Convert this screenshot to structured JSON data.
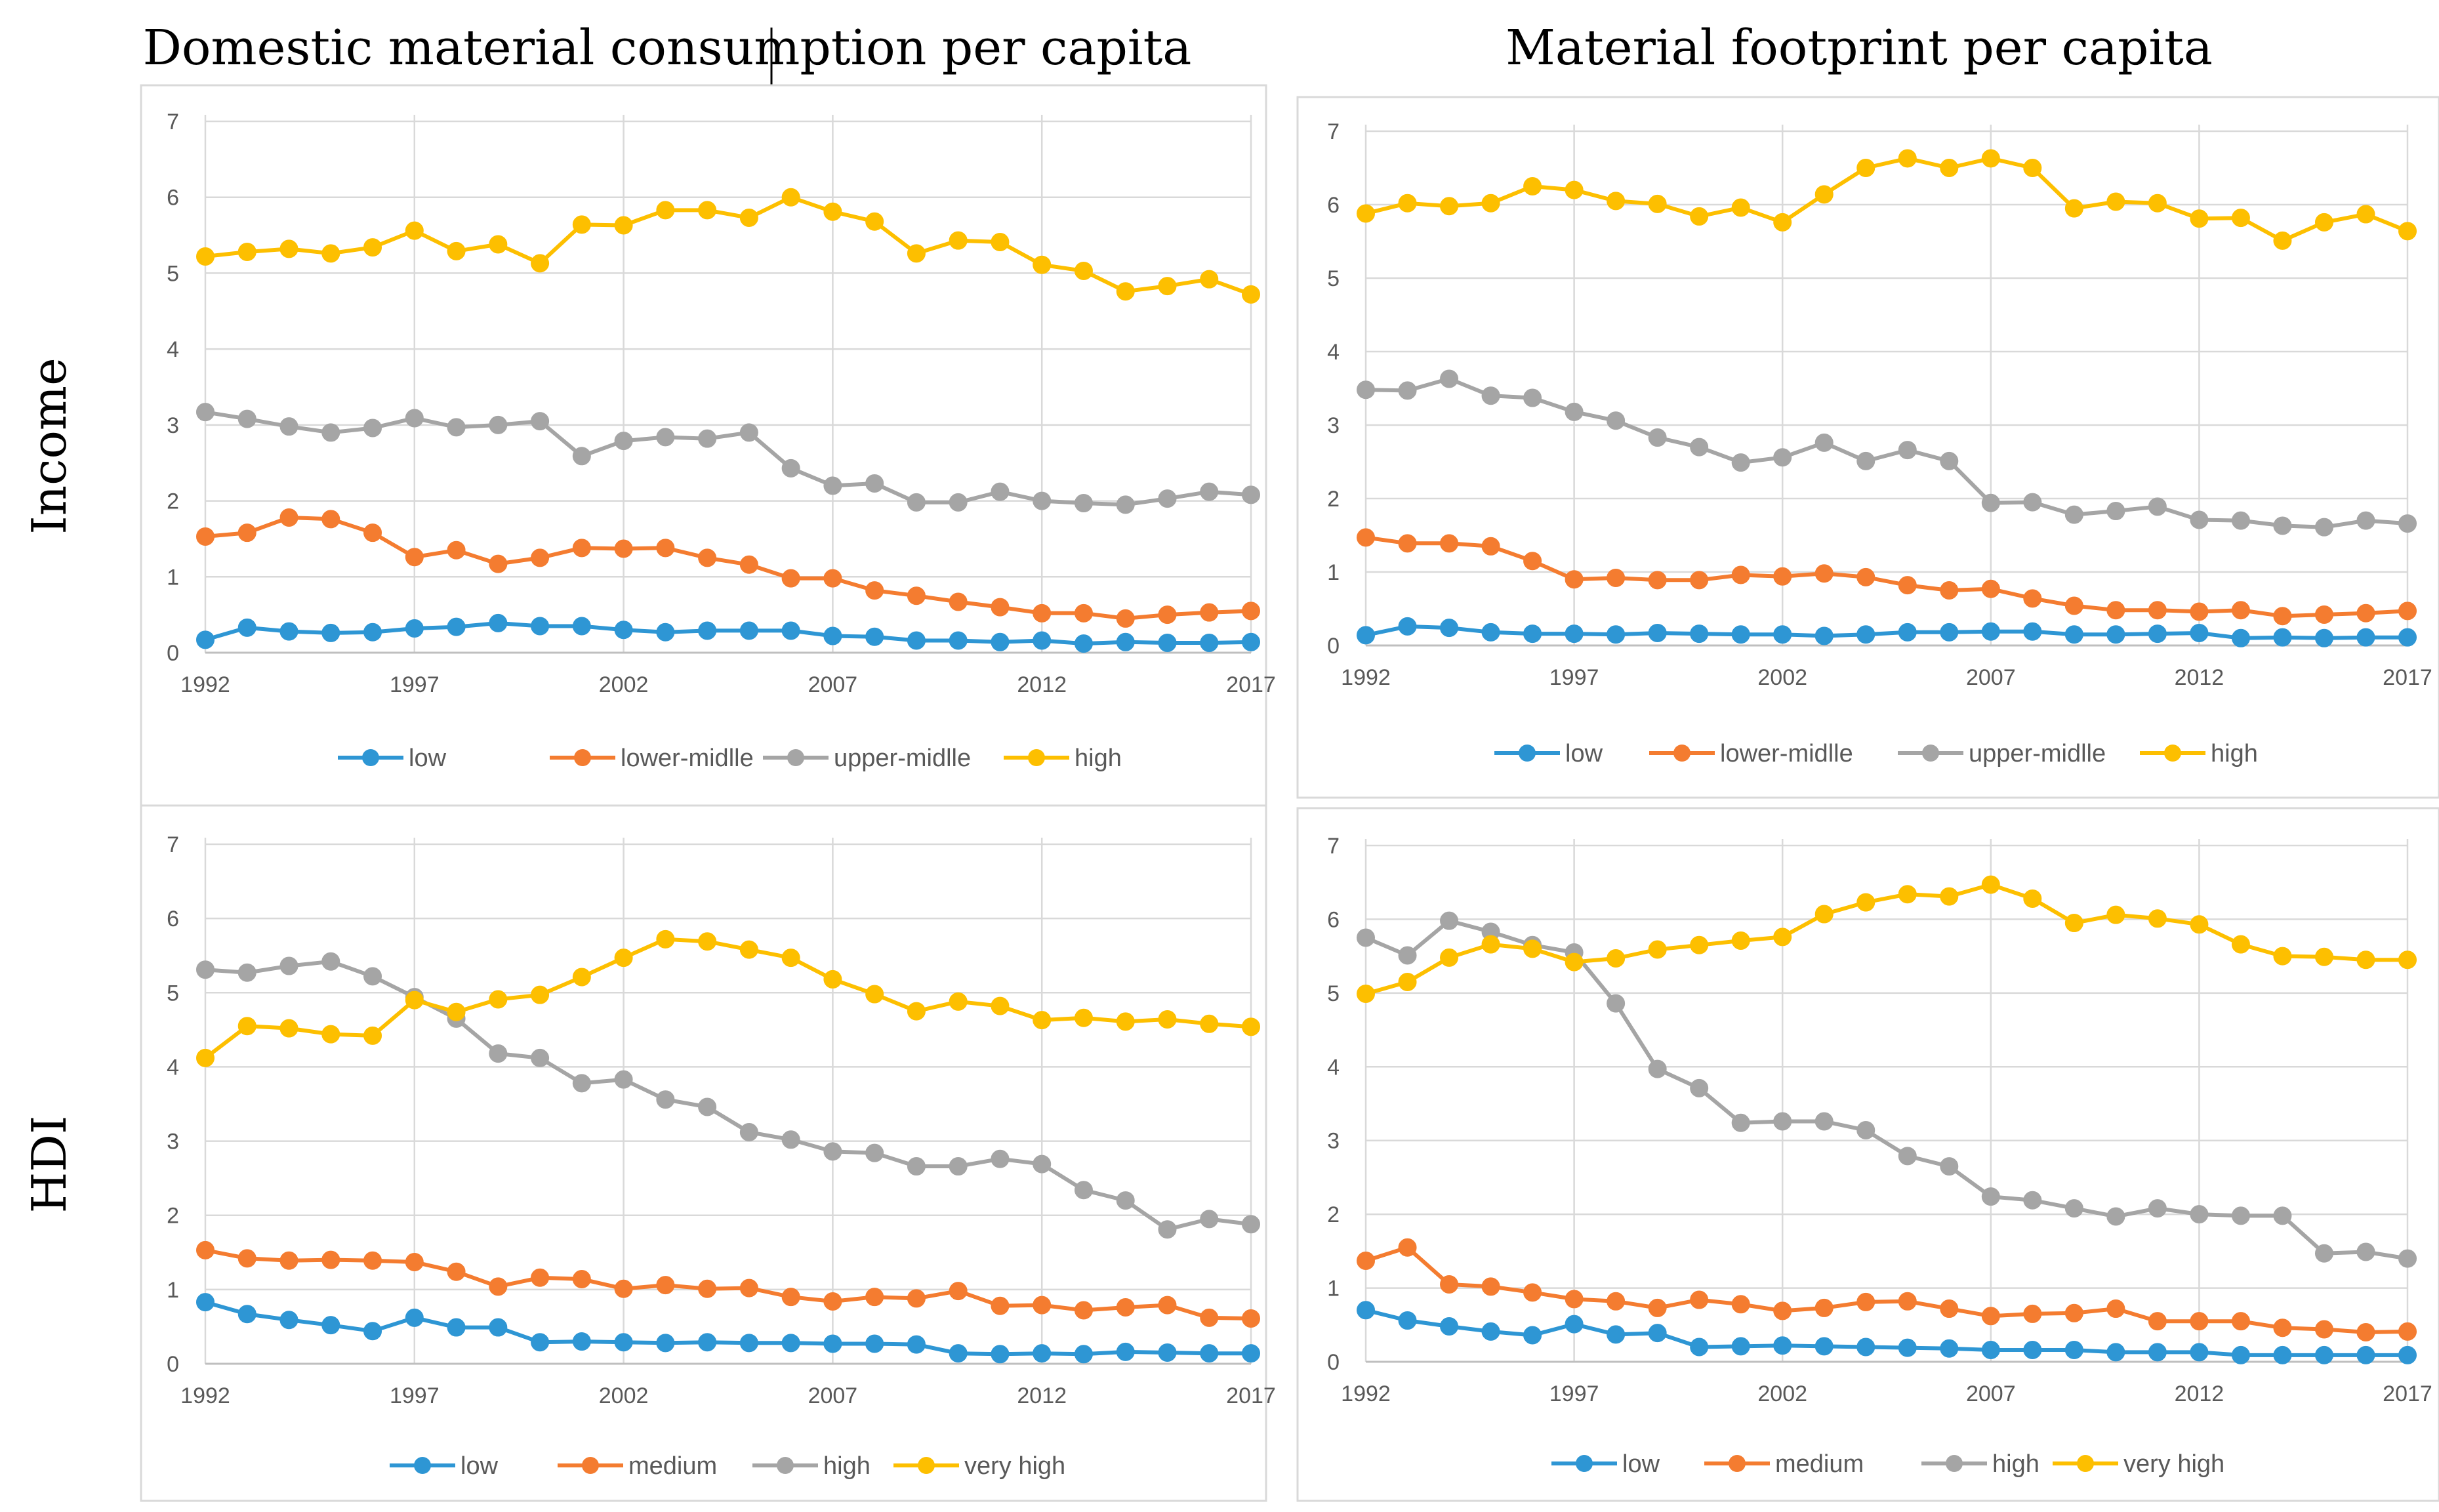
{
  "figure": {
    "col_titles": [
      "Domestic material consumption per capita",
      "Material footprint per capita"
    ],
    "row_titles": [
      "Income",
      "HDI"
    ]
  },
  "colors": {
    "low": "#2e96d4",
    "medium": "#f47c30",
    "high": "#a5a5a5",
    "top": "#fdbf00"
  },
  "chart_data": [
    {
      "type": "line",
      "title": "Domestic material consumption per capita",
      "row": "Income",
      "x": [
        1992,
        1993,
        1994,
        1995,
        1996,
        1997,
        1998,
        1999,
        2000,
        2001,
        2002,
        2003,
        2004,
        2005,
        2006,
        2007,
        2008,
        2009,
        2010,
        2011,
        2012,
        2013,
        2014,
        2015,
        2016,
        2017
      ],
      "xticks": [
        "1992",
        "1997",
        "2002",
        "2007",
        "2012",
        "2017"
      ],
      "yticks": [
        "0",
        "1",
        "2",
        "3",
        "4",
        "5",
        "6",
        "7"
      ],
      "ylim": [
        0,
        7
      ],
      "xlim": [
        1992,
        2017
      ],
      "series": [
        {
          "name": "low",
          "color": "#2e96d4",
          "values": [
            0.17,
            0.33,
            0.28,
            0.26,
            0.27,
            0.32,
            0.34,
            0.39,
            0.35,
            0.35,
            0.3,
            0.27,
            0.29,
            0.29,
            0.29,
            0.22,
            0.21,
            0.16,
            0.16,
            0.14,
            0.16,
            0.12,
            0.14,
            0.13,
            0.13,
            0.14
          ]
        },
        {
          "name": "lower-midlle",
          "color": "#f47c30",
          "values": [
            1.53,
            1.58,
            1.78,
            1.76,
            1.58,
            1.26,
            1.35,
            1.17,
            1.25,
            1.38,
            1.37,
            1.38,
            1.25,
            1.16,
            0.98,
            0.98,
            0.82,
            0.75,
            0.67,
            0.6,
            0.52,
            0.52,
            0.45,
            0.5,
            0.53,
            0.55
          ]
        },
        {
          "name": "upper-midlle",
          "color": "#a5a5a5",
          "values": [
            3.17,
            3.08,
            2.98,
            2.9,
            2.96,
            3.09,
            2.97,
            3.0,
            3.05,
            2.59,
            2.79,
            2.84,
            2.82,
            2.9,
            2.43,
            2.2,
            2.23,
            1.98,
            1.98,
            2.12,
            2.0,
            1.97,
            1.95,
            2.03,
            2.12,
            2.08
          ]
        },
        {
          "name": "high",
          "color": "#fdbf00",
          "values": [
            5.22,
            5.28,
            5.32,
            5.26,
            5.34,
            5.56,
            5.29,
            5.38,
            5.13,
            5.64,
            5.63,
            5.83,
            5.83,
            5.73,
            6.0,
            5.81,
            5.68,
            5.26,
            5.43,
            5.41,
            5.11,
            5.03,
            4.76,
            4.83,
            4.92,
            4.72
          ]
        }
      ]
    },
    {
      "type": "line",
      "title": "Material footprint per capita",
      "row": "Income",
      "x": [
        1992,
        1993,
        1994,
        1995,
        1996,
        1997,
        1998,
        1999,
        2000,
        2001,
        2002,
        2003,
        2004,
        2005,
        2006,
        2007,
        2008,
        2009,
        2010,
        2011,
        2012,
        2013,
        2014,
        2015,
        2016,
        2017
      ],
      "xticks": [
        "1992",
        "1997",
        "2002",
        "2007",
        "2012",
        "2017"
      ],
      "yticks": [
        "0",
        "1",
        "2",
        "3",
        "4",
        "5",
        "6",
        "7"
      ],
      "ylim": [
        0,
        7
      ],
      "xlim": [
        1992,
        2017
      ],
      "series": [
        {
          "name": "low",
          "color": "#2e96d4",
          "values": [
            0.14,
            0.26,
            0.24,
            0.18,
            0.16,
            0.16,
            0.15,
            0.17,
            0.16,
            0.15,
            0.15,
            0.13,
            0.15,
            0.18,
            0.18,
            0.19,
            0.19,
            0.15,
            0.15,
            0.16,
            0.17,
            0.1,
            0.11,
            0.1,
            0.11,
            0.11
          ]
        },
        {
          "name": "lower-midlle",
          "color": "#f47c30",
          "values": [
            1.47,
            1.39,
            1.39,
            1.35,
            1.15,
            0.9,
            0.92,
            0.89,
            0.89,
            0.96,
            0.94,
            0.98,
            0.93,
            0.82,
            0.75,
            0.77,
            0.64,
            0.54,
            0.48,
            0.48,
            0.46,
            0.48,
            0.4,
            0.42,
            0.44,
            0.47
          ]
        },
        {
          "name": "upper-midlle",
          "color": "#a5a5a5",
          "values": [
            3.48,
            3.47,
            3.63,
            3.4,
            3.37,
            3.18,
            3.06,
            2.83,
            2.7,
            2.49,
            2.56,
            2.76,
            2.51,
            2.66,
            2.51,
            1.94,
            1.95,
            1.78,
            1.83,
            1.89,
            1.71,
            1.7,
            1.63,
            1.61,
            1.7,
            1.66
          ]
        },
        {
          "name": "high",
          "color": "#fdbf00",
          "values": [
            5.88,
            6.02,
            5.98,
            6.02,
            6.25,
            6.2,
            6.05,
            6.01,
            5.84,
            5.96,
            5.76,
            6.14,
            6.5,
            6.63,
            6.5,
            6.63,
            6.5,
            5.95,
            6.04,
            6.02,
            5.81,
            5.82,
            5.51,
            5.76,
            5.87,
            5.64
          ]
        }
      ]
    },
    {
      "type": "line",
      "title": "Domestic material consumption per capita",
      "row": "HDI",
      "x": [
        1992,
        1993,
        1994,
        1995,
        1996,
        1997,
        1998,
        1999,
        2000,
        2001,
        2002,
        2003,
        2004,
        2005,
        2006,
        2007,
        2008,
        2009,
        2010,
        2011,
        2012,
        2013,
        2014,
        2015,
        2016,
        2017
      ],
      "xticks": [
        "1992",
        "1997",
        "2002",
        "2007",
        "2012",
        "2017"
      ],
      "yticks": [
        "0",
        "1",
        "2",
        "3",
        "4",
        "5",
        "6",
        "7"
      ],
      "ylim": [
        0,
        7
      ],
      "xlim": [
        1992,
        2017
      ],
      "series": [
        {
          "name": "low",
          "color": "#2e96d4",
          "values": [
            0.83,
            0.67,
            0.59,
            0.52,
            0.44,
            0.62,
            0.49,
            0.49,
            0.29,
            0.3,
            0.29,
            0.28,
            0.29,
            0.28,
            0.28,
            0.27,
            0.27,
            0.26,
            0.14,
            0.13,
            0.14,
            0.13,
            0.16,
            0.15,
            0.14,
            0.14
          ]
        },
        {
          "name": "medium",
          "color": "#f47c30",
          "values": [
            1.53,
            1.42,
            1.39,
            1.4,
            1.39,
            1.37,
            1.24,
            1.04,
            1.16,
            1.14,
            1.01,
            1.06,
            1.01,
            1.02,
            0.9,
            0.84,
            0.9,
            0.88,
            0.98,
            0.78,
            0.79,
            0.72,
            0.76,
            0.79,
            0.62,
            0.61
          ]
        },
        {
          "name": "high",
          "color": "#a5a5a5",
          "values": [
            5.31,
            5.27,
            5.36,
            5.42,
            5.22,
            4.94,
            4.65,
            4.18,
            4.12,
            3.78,
            3.83,
            3.56,
            3.46,
            3.12,
            3.02,
            2.86,
            2.84,
            2.66,
            2.66,
            2.76,
            2.69,
            2.34,
            2.2,
            1.81,
            1.95,
            1.88
          ]
        },
        {
          "name": "very high",
          "color": "#fdbf00",
          "values": [
            4.12,
            4.55,
            4.52,
            4.44,
            4.42,
            4.9,
            4.74,
            4.91,
            4.97,
            5.21,
            5.47,
            5.72,
            5.69,
            5.58,
            5.47,
            5.18,
            4.98,
            4.75,
            4.88,
            4.82,
            4.63,
            4.66,
            4.61,
            4.64,
            4.58,
            4.54
          ]
        }
      ]
    },
    {
      "type": "line",
      "title": "Material footprint per capita",
      "row": "HDI",
      "x": [
        1992,
        1993,
        1994,
        1995,
        1996,
        1997,
        1998,
        1999,
        2000,
        2001,
        2002,
        2003,
        2004,
        2005,
        2006,
        2007,
        2008,
        2009,
        2010,
        2011,
        2012,
        2013,
        2014,
        2015,
        2016,
        2017
      ],
      "xticks": [
        "1992",
        "1997",
        "2002",
        "2007",
        "2012",
        "2017"
      ],
      "yticks": [
        "0",
        "1",
        "2",
        "3",
        "4",
        "5",
        "6",
        "7"
      ],
      "ylim": [
        0,
        7
      ],
      "xlim": [
        1992,
        2017
      ],
      "series": [
        {
          "name": "low",
          "color": "#2e96d4",
          "values": [
            0.7,
            0.56,
            0.48,
            0.41,
            0.36,
            0.51,
            0.37,
            0.39,
            0.2,
            0.21,
            0.22,
            0.21,
            0.2,
            0.19,
            0.18,
            0.16,
            0.16,
            0.16,
            0.13,
            0.13,
            0.13,
            0.09,
            0.09,
            0.09,
            0.09,
            0.09
          ]
        },
        {
          "name": "medium",
          "color": "#f47c30",
          "values": [
            1.37,
            1.55,
            1.05,
            1.02,
            0.94,
            0.85,
            0.82,
            0.73,
            0.84,
            0.78,
            0.69,
            0.73,
            0.81,
            0.82,
            0.72,
            0.62,
            0.65,
            0.66,
            0.72,
            0.55,
            0.55,
            0.55,
            0.46,
            0.44,
            0.4,
            0.41
          ]
        },
        {
          "name": "high",
          "color": "#a5a5a5",
          "values": [
            5.75,
            5.51,
            5.98,
            5.83,
            5.65,
            5.55,
            4.86,
            3.97,
            3.71,
            3.24,
            3.26,
            3.26,
            3.14,
            2.79,
            2.65,
            2.24,
            2.19,
            2.08,
            1.97,
            2.08,
            2.0,
            1.98,
            1.98,
            1.47,
            1.49,
            1.4
          ]
        },
        {
          "name": "very high",
          "color": "#fdbf00",
          "values": [
            4.99,
            5.15,
            5.48,
            5.66,
            5.6,
            5.42,
            5.47,
            5.59,
            5.65,
            5.71,
            5.76,
            6.07,
            6.23,
            6.34,
            6.31,
            6.47,
            6.28,
            5.95,
            6.06,
            6.01,
            5.93,
            5.66,
            5.5,
            5.49,
            5.45,
            5.45
          ]
        }
      ]
    }
  ]
}
